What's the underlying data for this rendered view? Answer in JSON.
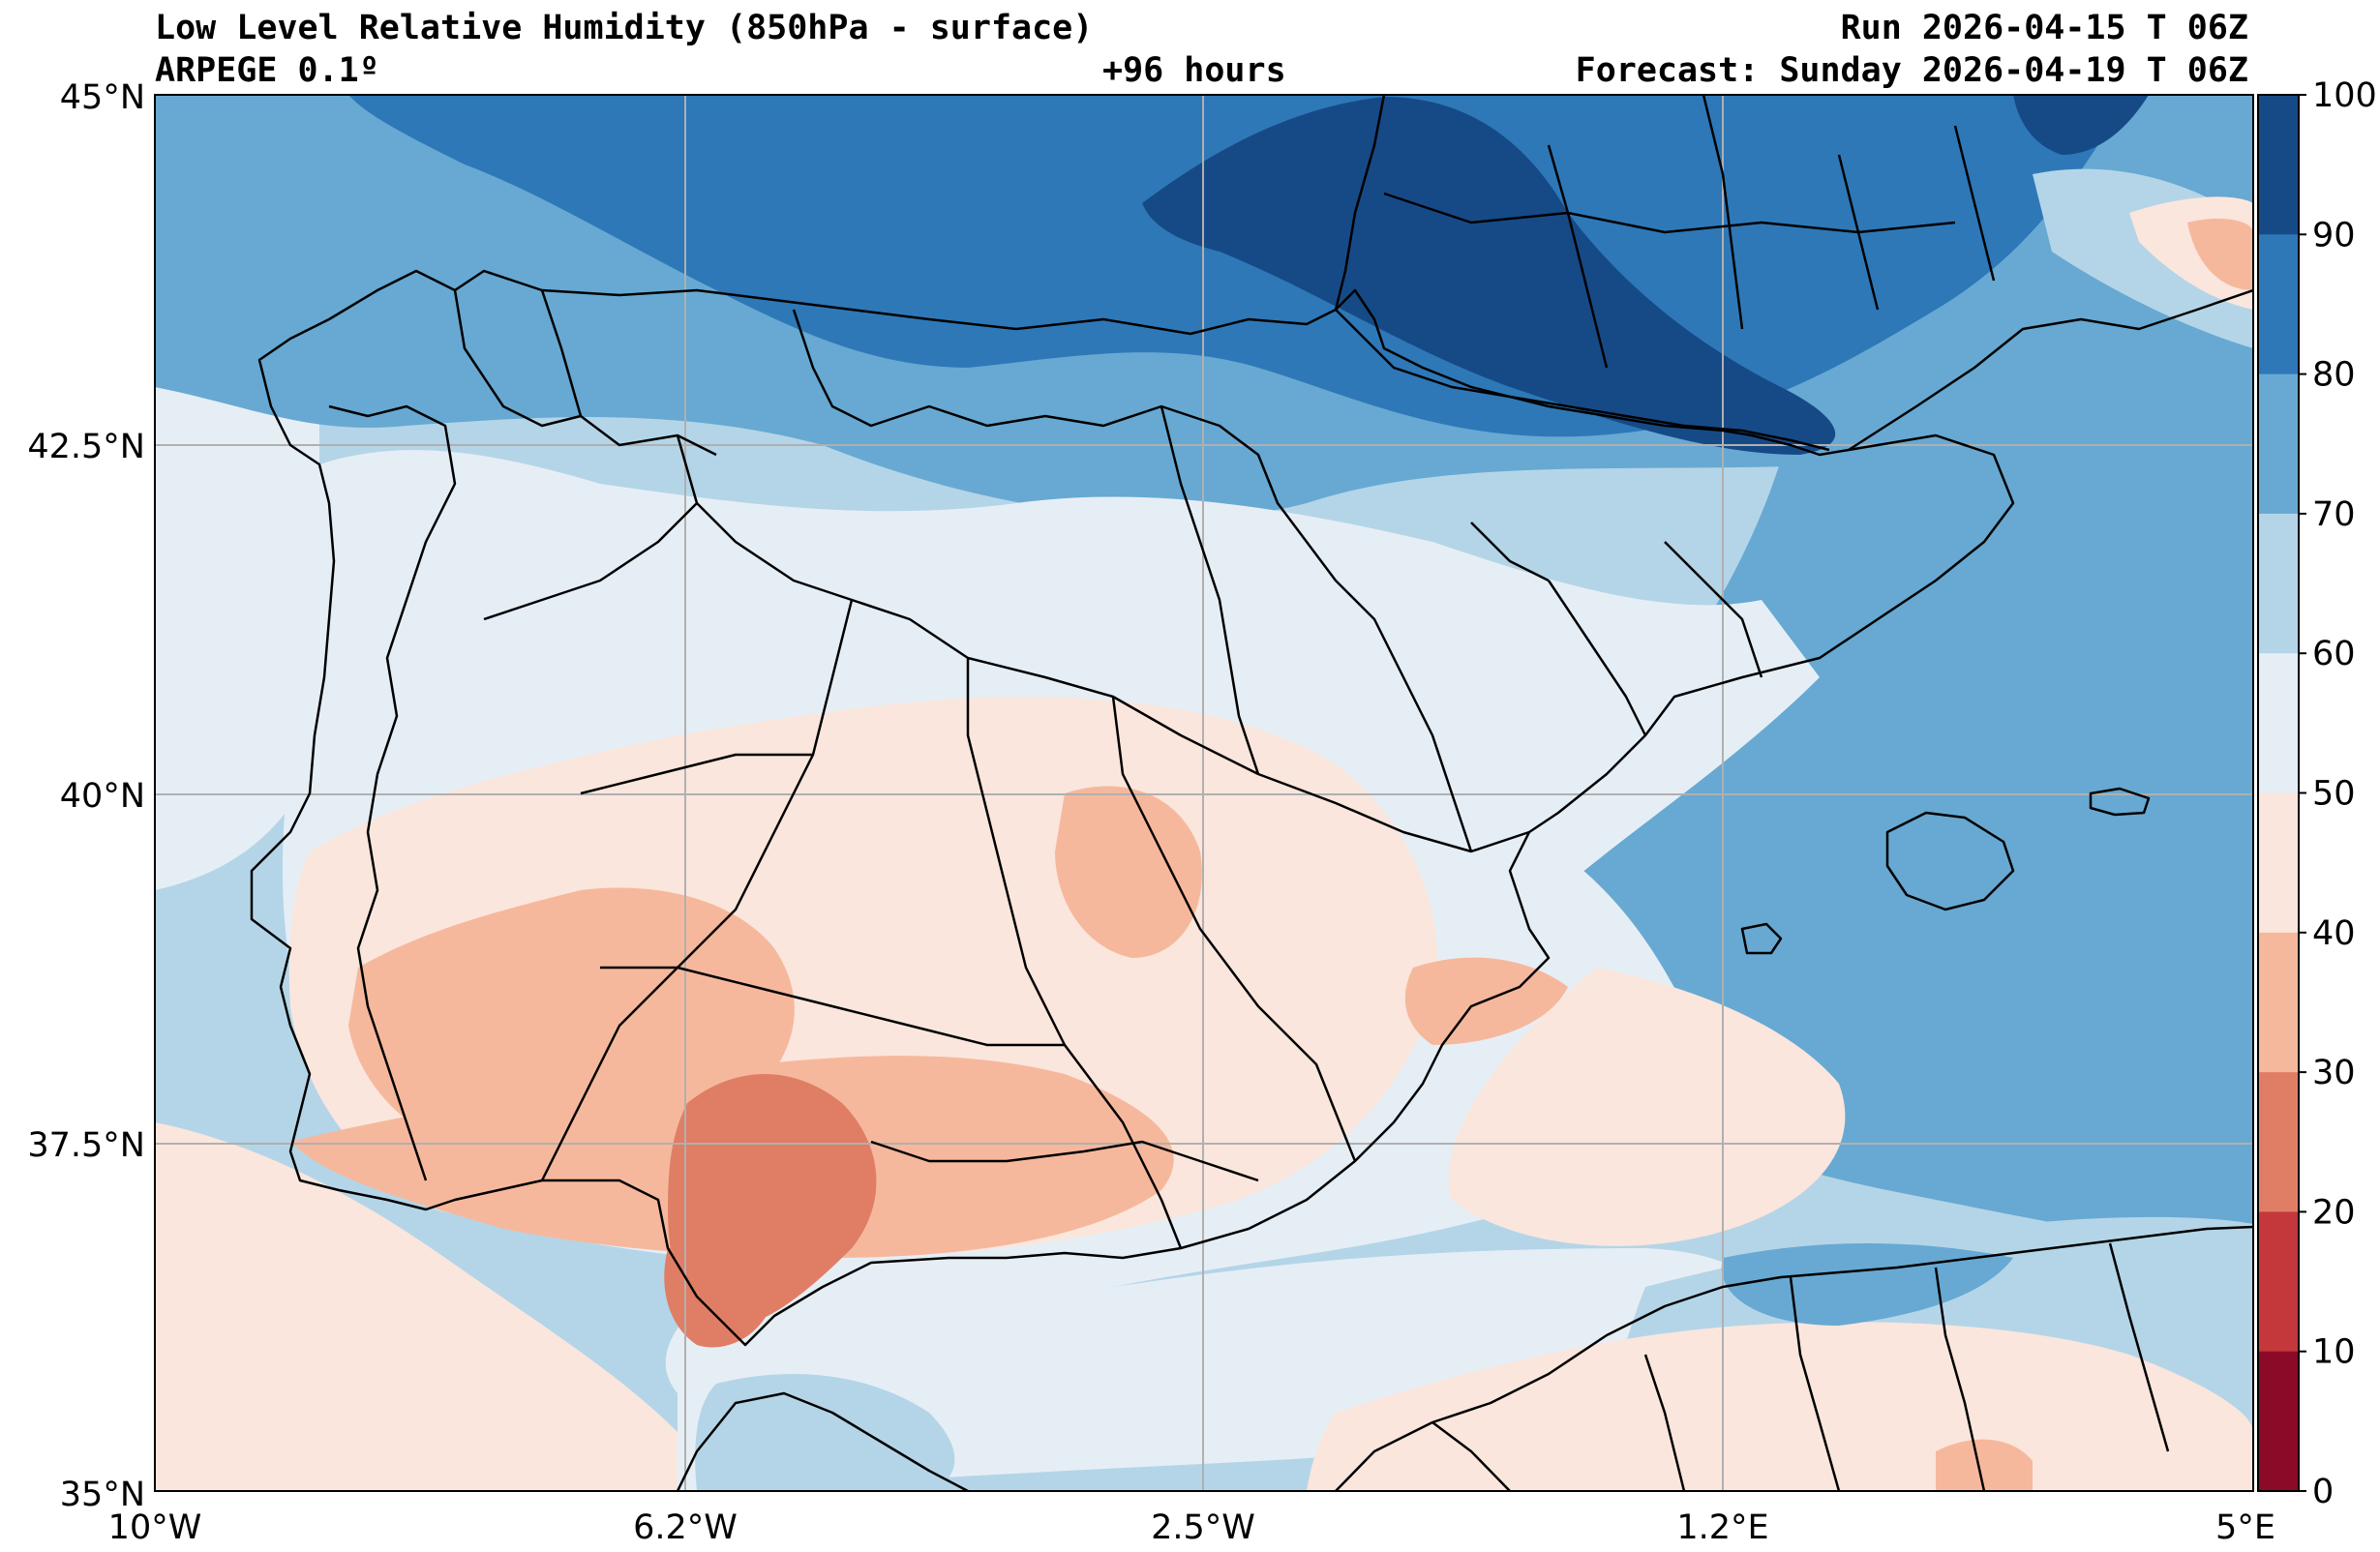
{
  "header": {
    "title": "Low Level Relative Humidity (850hPa - surface)",
    "model": "ARPEGE 0.1º",
    "lead_time": "+96 hours",
    "run": "Run 2026-04-15 T 06Z",
    "forecast": "Forecast: Sunday 2026-04-19 T 06Z"
  },
  "axes": {
    "latitude_ticks": [
      "45°N",
      "42.5°N",
      "40°N",
      "37.5°N",
      "35°N"
    ],
    "longitude_ticks": [
      "10°W",
      "6.2°W",
      "2.5°W",
      "1.2°E",
      "5°E"
    ]
  },
  "colorbar": {
    "ticks": [
      "100",
      "90",
      "80",
      "70",
      "60",
      "50",
      "40",
      "30",
      "20",
      "10",
      "0"
    ],
    "colors": [
      "#164a87",
      "#2e78b8",
      "#67a9d2",
      "#b4d5e8",
      "#e6eef5",
      "#fae6dd",
      "#f6b89c",
      "#e07e65",
      "#c4373b",
      "#8a0a28"
    ]
  },
  "fields": {
    "background": "#b4d5e8",
    "grid_color": "#b0b0b0",
    "coast_color": "#000000"
  }
}
